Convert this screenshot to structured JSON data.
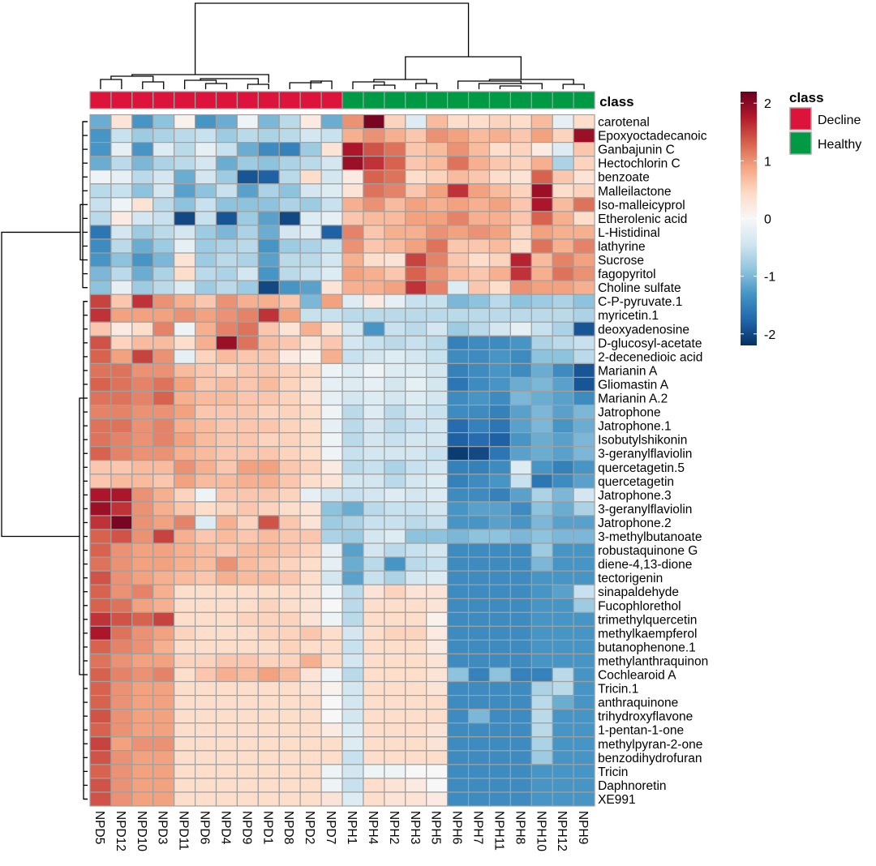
{
  "chart_data": {
    "type": "heatmap",
    "title": "",
    "columns": [
      "NPD5",
      "NPD12",
      "NPD10",
      "NPD3",
      "NPD11",
      "NPD6",
      "NPD4",
      "NPD9",
      "NPD1",
      "NPD8",
      "NPD2",
      "NPD7",
      "NPH1",
      "NPH4",
      "NPH2",
      "NPH3",
      "NPH5",
      "NPH6",
      "NPH7",
      "NPH11",
      "NPH8",
      "NPH10",
      "NPH12",
      "NPH9"
    ],
    "column_class": [
      "Decline",
      "Decline",
      "Decline",
      "Decline",
      "Decline",
      "Decline",
      "Decline",
      "Decline",
      "Decline",
      "Decline",
      "Decline",
      "Decline",
      "Healthy",
      "Healthy",
      "Healthy",
      "Healthy",
      "Healthy",
      "Healthy",
      "Healthy",
      "Healthy",
      "Healthy",
      "Healthy",
      "Healthy",
      "Healthy"
    ],
    "class_label": "class",
    "rows": [
      "carotenal",
      "Epoxyoctadecanoic",
      "Ganbajunin C",
      "Hectochlorin C",
      "benzoate",
      "Malleilactone",
      "Iso-malleicyprol",
      "Etherolenic acid",
      "L-Histidinal",
      "lathyrine",
      "Sucrose",
      "fagopyritol",
      "Choline sulfate",
      "C-P-pyruvate.1",
      "myricetin.1",
      "deoxyadenosine",
      "D-glucosyl-acetate",
      "2-decenedioic acid",
      "Marianin A",
      "Gliomastin A",
      "Marianin A.2",
      "Jatrophone",
      "Jatrophone.1",
      "Isobutylshikonin",
      "3-geranylflaviolin",
      "quercetagetin.5",
      "quercetagetin",
      "Jatrophone.3",
      "3-geranylflaviolin",
      "Jatrophone.2",
      "3-methylbutanoate",
      "robustaquinone G",
      "diene-4,13-dione",
      "tectorigenin",
      "sinapaldehyde",
      "Fucophlorethol",
      "trimethylquercetin",
      "methylkaempferol",
      "butanophenone.1",
      "methylanthraquinon",
      "Cochlearoid A",
      "Tricin.1",
      "anthraquinone",
      "trihydroxyflavone",
      "1-pentan-1-one",
      "methylpyran-2-one",
      "benzodihydrofuran",
      "Tricin",
      "Daphnoretin",
      "XE991"
    ],
    "values": [
      [
        -1.1,
        0.3,
        -1.3,
        -0.9,
        0.1,
        -1.3,
        -1.1,
        -0.1,
        -1.0,
        -0.6,
        0.2,
        -1.1,
        1.0,
        2.1,
        0.5,
        -0.3,
        0.7,
        0.4,
        0.4,
        0.5,
        0.4,
        0.7,
        -0.2,
        0.4
      ],
      [
        -1.3,
        -0.5,
        -0.8,
        -0.7,
        -0.6,
        -0.5,
        -0.8,
        -0.6,
        -0.7,
        -0.6,
        -0.4,
        -0.5,
        0.8,
        1.0,
        0.8,
        0.6,
        1.0,
        0.9,
        0.7,
        0.8,
        0.6,
        0.9,
        0.5,
        1.9
      ],
      [
        -1.3,
        -0.2,
        -1.3,
        -0.3,
        -0.6,
        -0.2,
        -0.5,
        -1.1,
        -1.4,
        -1.5,
        -0.8,
        0.3,
        1.8,
        1.4,
        1.2,
        0.6,
        0.7,
        1.0,
        0.7,
        0.4,
        0.5,
        0.2,
        -0.3,
        0.6
      ],
      [
        -1.1,
        -0.6,
        -1.0,
        -0.7,
        -0.6,
        -0.4,
        -1.1,
        -0.8,
        -0.9,
        -0.7,
        -0.6,
        -0.4,
        1.9,
        1.6,
        1.3,
        0.6,
        0.7,
        1.2,
        0.8,
        0.6,
        0.5,
        0.8,
        -0.7,
        0.5
      ],
      [
        -0.1,
        -0.2,
        -0.6,
        -0.4,
        -1.1,
        -0.4,
        -0.8,
        -1.9,
        -1.8,
        -0.6,
        0.4,
        -0.4,
        0.2,
        1.3,
        1.2,
        0.4,
        0.5,
        0.7,
        0.6,
        0.4,
        0.3,
        1.3,
        0.6,
        0.3
      ],
      [
        -0.6,
        -0.5,
        -0.9,
        -0.4,
        -1.2,
        -0.9,
        -0.5,
        -1.2,
        -0.7,
        -0.9,
        -0.4,
        -0.3,
        0.3,
        1.2,
        1.1,
        0.6,
        0.9,
        1.6,
        0.9,
        0.7,
        0.5,
        1.9,
        0.4,
        0.5
      ],
      [
        -0.5,
        -0.1,
        0.3,
        -0.6,
        -0.9,
        -0.5,
        -0.9,
        -0.9,
        -0.9,
        -0.7,
        -0.8,
        -0.5,
        0.8,
        1.0,
        0.7,
        0.9,
        0.8,
        0.9,
        0.8,
        0.9,
        0.6,
        1.8,
        0.7,
        1.2
      ],
      [
        -0.6,
        0.2,
        -0.4,
        -0.5,
        -2.0,
        -0.5,
        -1.9,
        -0.8,
        -1.2,
        -2.0,
        -0.3,
        -0.2,
        0.6,
        0.7,
        0.7,
        0.9,
        0.9,
        1.1,
        0.8,
        0.8,
        0.6,
        1.3,
        0.8,
        0.4
      ],
      [
        -1.6,
        -0.4,
        -0.8,
        -0.6,
        -0.4,
        -0.8,
        -1.0,
        -0.7,
        -1.1,
        -0.4,
        -0.3,
        -1.8,
        1.1,
        0.6,
        0.8,
        0.8,
        1.0,
        0.9,
        1.0,
        0.9,
        0.5,
        0.9,
        0.8,
        0.8
      ],
      [
        -1.4,
        -0.6,
        -1.1,
        -0.8,
        -0.2,
        -0.8,
        -0.7,
        -0.6,
        -1.3,
        -0.8,
        -0.7,
        -0.5,
        1.0,
        0.6,
        0.7,
        0.9,
        1.2,
        0.6,
        0.6,
        0.7,
        0.4,
        1.2,
        0.8,
        1.1
      ],
      [
        -1.3,
        -0.9,
        -1.3,
        -1.0,
        0.3,
        -0.8,
        -0.6,
        -0.7,
        -1.2,
        -0.6,
        -0.6,
        -0.4,
        0.8,
        0.4,
        0.3,
        1.5,
        1.1,
        0.6,
        0.4,
        0.5,
        1.7,
        0.7,
        1.1,
        0.9
      ],
      [
        -1.0,
        -0.6,
        -1.1,
        -0.7,
        0.4,
        -0.6,
        -0.7,
        -0.4,
        -1.3,
        -0.6,
        -0.5,
        -0.3,
        0.9,
        0.8,
        0.6,
        1.3,
        1.0,
        0.7,
        0.6,
        0.8,
        1.6,
        0.8,
        1.2,
        1.0
      ],
      [
        -0.9,
        -0.2,
        -0.8,
        -0.6,
        -0.3,
        -0.8,
        -0.6,
        -0.8,
        -2.0,
        -1.3,
        -1.2,
        0.3,
        0.8,
        0.8,
        0.9,
        1.6,
        1.1,
        -0.3,
        0.6,
        0.4,
        1.0,
        0.9,
        0.9,
        0.8
      ],
      [
        1.5,
        0.6,
        1.6,
        1.0,
        0.8,
        0.6,
        1.0,
        0.8,
        0.8,
        0.6,
        -1.0,
        0.9,
        -0.3,
        0.2,
        -0.2,
        -0.5,
        -0.5,
        -1.0,
        -0.9,
        -0.6,
        -0.9,
        -0.8,
        -0.7,
        -0.9
      ],
      [
        1.6,
        0.9,
        0.9,
        0.9,
        1.0,
        0.9,
        1.0,
        1.1,
        1.6,
        0.9,
        -0.5,
        -0.5,
        -0.6,
        -0.6,
        -0.6,
        -0.6,
        -0.6,
        -0.6,
        -0.6,
        -0.6,
        -0.6,
        -0.6,
        -0.6,
        -0.7
      ],
      [
        0.6,
        0.2,
        0.4,
        1.1,
        -0.1,
        0.8,
        1.1,
        1.2,
        0.6,
        0.3,
        0.8,
        0.3,
        -0.4,
        -1.3,
        -0.5,
        -0.6,
        -0.4,
        -0.8,
        -0.6,
        -0.4,
        -0.2,
        -0.5,
        -0.7,
        -1.9
      ],
      [
        1.4,
        0.5,
        0.7,
        0.7,
        0.4,
        0.8,
        1.9,
        1.2,
        0.7,
        0.6,
        0.3,
        0.6,
        -0.4,
        -0.5,
        -0.6,
        -0.5,
        -0.6,
        -1.5,
        -1.4,
        -1.4,
        -1.3,
        -0.7,
        -0.6,
        -0.5
      ],
      [
        1.3,
        0.9,
        1.5,
        1.0,
        -0.2,
        0.5,
        0.7,
        0.6,
        0.6,
        0.2,
        0.1,
        0.8,
        -0.5,
        -0.4,
        -0.3,
        -0.4,
        -0.5,
        -1.4,
        -1.4,
        -1.3,
        -1.4,
        -0.9,
        -0.9,
        -0.6
      ],
      [
        1.2,
        1.2,
        1.0,
        1.0,
        0.7,
        0.6,
        0.5,
        0.6,
        0.6,
        0.5,
        0.4,
        -0.1,
        -0.3,
        -0.1,
        -0.3,
        -0.3,
        -0.4,
        -1.5,
        -1.4,
        -1.3,
        -1.4,
        -1.1,
        -1.4,
        -1.9
      ],
      [
        1.3,
        1.2,
        1.1,
        1.2,
        0.9,
        0.6,
        0.7,
        0.6,
        0.7,
        0.5,
        0.3,
        -0.2,
        -0.3,
        -0.2,
        -0.4,
        -0.2,
        -0.4,
        -1.6,
        -1.4,
        -1.3,
        -1.1,
        -1.0,
        -1.2,
        -1.9
      ],
      [
        1.2,
        1.2,
        1.1,
        1.3,
        0.8,
        0.7,
        0.7,
        0.6,
        0.6,
        0.5,
        0.3,
        -0.2,
        -0.4,
        -0.3,
        -0.4,
        -0.3,
        -0.4,
        -1.4,
        -1.3,
        -1.4,
        -1.0,
        -1.1,
        -1.2,
        -1.4
      ],
      [
        1.1,
        1.1,
        1.0,
        1.0,
        0.9,
        0.6,
        0.6,
        0.6,
        0.5,
        0.5,
        0.4,
        -0.1,
        -0.6,
        -0.3,
        -0.6,
        -0.4,
        -0.5,
        -1.4,
        -1.4,
        -1.5,
        -1.2,
        -1.0,
        -1.2,
        -1.0
      ],
      [
        1.2,
        1.2,
        1.0,
        1.1,
        0.8,
        0.7,
        0.6,
        0.6,
        0.6,
        0.5,
        0.4,
        -0.2,
        -0.6,
        -0.4,
        -0.6,
        -0.5,
        -0.4,
        -1.7,
        -1.5,
        -1.6,
        -1.2,
        -1.0,
        -1.3,
        -1.1
      ],
      [
        1.2,
        1.1,
        1.0,
        1.1,
        0.9,
        0.7,
        0.6,
        0.6,
        0.5,
        0.5,
        0.4,
        -0.1,
        -0.6,
        -0.4,
        -0.5,
        -0.4,
        -0.4,
        -1.8,
        -1.7,
        -1.8,
        -1.3,
        -1.1,
        -1.2,
        -1.0
      ],
      [
        1.3,
        1.1,
        1.0,
        1.0,
        0.8,
        0.7,
        0.6,
        0.6,
        0.6,
        0.5,
        0.4,
        -0.1,
        -0.5,
        -0.4,
        -0.4,
        -0.4,
        -0.5,
        -2.1,
        -2.0,
        -1.6,
        -1.2,
        -1.1,
        -1.2,
        -1.0
      ],
      [
        0.6,
        0.6,
        0.7,
        0.7,
        1.0,
        0.8,
        0.6,
        0.9,
        0.9,
        0.6,
        0.5,
        0.2,
        -0.6,
        -0.5,
        -0.7,
        -0.5,
        -0.4,
        -1.5,
        -1.5,
        -1.4,
        -0.3,
        -1.3,
        -1.5,
        -1.3
      ],
      [
        0.6,
        0.7,
        0.7,
        0.6,
        0.9,
        0.7,
        0.7,
        0.8,
        0.8,
        0.6,
        0.4,
        0.3,
        -0.4,
        -0.4,
        -0.6,
        -0.4,
        -0.3,
        -1.5,
        -1.4,
        -1.3,
        -0.5,
        -1.6,
        -1.4,
        -1.2
      ],
      [
        1.8,
        1.8,
        1.0,
        0.8,
        0.5,
        -0.1,
        0.6,
        0.6,
        0.6,
        0.5,
        -0.2,
        -0.4,
        -0.5,
        -0.4,
        -0.3,
        -0.4,
        -0.3,
        -1.4,
        -1.4,
        -1.5,
        -1.2,
        -0.7,
        -1.0,
        -0.4
      ],
      [
        1.9,
        1.6,
        1.0,
        0.8,
        0.6,
        0.4,
        0.5,
        0.6,
        0.5,
        0.4,
        0.3,
        -0.9,
        -1.1,
        -0.6,
        -0.5,
        -0.5,
        -0.4,
        -1.3,
        -1.2,
        -1.2,
        -1.4,
        -0.9,
        -1.1,
        -0.7
      ],
      [
        1.6,
        2.1,
        1.0,
        0.9,
        1.1,
        -0.3,
        0.8,
        0.5,
        1.4,
        0.6,
        0.3,
        -0.8,
        -0.7,
        -0.5,
        -0.5,
        -0.6,
        -0.5,
        -1.3,
        -1.3,
        -1.2,
        -1.3,
        -1.0,
        -1.2,
        -1.2
      ],
      [
        1.3,
        1.4,
        1.0,
        1.5,
        0.8,
        0.6,
        0.7,
        0.6,
        0.7,
        0.6,
        0.6,
        -0.7,
        -0.8,
        -0.4,
        -0.3,
        -0.9,
        -0.9,
        -1.0,
        -0.9,
        -0.9,
        -1.0,
        -0.9,
        -1.0,
        -1.0
      ],
      [
        1.3,
        1.0,
        0.9,
        0.9,
        0.8,
        0.7,
        0.6,
        0.7,
        0.7,
        0.6,
        0.5,
        -0.2,
        -1.2,
        -0.4,
        -0.6,
        -0.5,
        -0.4,
        -1.4,
        -1.4,
        -1.4,
        -1.4,
        -0.8,
        -1.3,
        -1.3
      ],
      [
        1.2,
        1.0,
        0.9,
        0.9,
        0.8,
        0.7,
        1.0,
        0.7,
        0.6,
        0.5,
        0.4,
        -0.2,
        -1.1,
        -0.6,
        -1.3,
        -0.6,
        -0.5,
        -1.4,
        -1.4,
        -1.4,
        -1.4,
        -1.0,
        -1.3,
        -1.3
      ],
      [
        1.4,
        1.0,
        0.9,
        0.8,
        0.7,
        0.6,
        0.8,
        0.7,
        0.7,
        0.6,
        0.4,
        -0.4,
        -1.2,
        -0.5,
        -0.7,
        -0.4,
        -0.3,
        -1.4,
        -1.4,
        -1.4,
        -1.4,
        -1.3,
        -1.3,
        -1.3
      ],
      [
        1.3,
        1.0,
        1.1,
        0.8,
        0.4,
        0.4,
        0.4,
        0.4,
        0.4,
        0.4,
        0.3,
        -0.1,
        -0.6,
        0.3,
        0.5,
        0.3,
        0.3,
        -1.4,
        -1.4,
        -1.4,
        -1.4,
        -1.3,
        -1.2,
        -0.5
      ],
      [
        1.3,
        1.2,
        0.9,
        0.8,
        0.4,
        0.4,
        0.4,
        0.4,
        0.5,
        0.4,
        0.3,
        0.0,
        -0.6,
        0.4,
        0.4,
        0.4,
        0.3,
        -1.4,
        -1.4,
        -1.4,
        -1.4,
        -1.3,
        -1.3,
        -0.8
      ],
      [
        1.6,
        1.4,
        1.3,
        1.5,
        0.4,
        0.4,
        0.4,
        0.5,
        0.5,
        0.5,
        0.3,
        -0.1,
        -0.6,
        0.4,
        0.4,
        0.4,
        0.1,
        -1.4,
        -1.4,
        -1.4,
        -1.4,
        -1.3,
        -1.3,
        -1.3
      ],
      [
        1.8,
        1.2,
        1.0,
        0.9,
        0.5,
        0.4,
        0.4,
        0.4,
        0.5,
        0.5,
        0.6,
        0.4,
        -0.4,
        0.4,
        0.5,
        0.5,
        0.2,
        -1.4,
        -1.4,
        -1.4,
        -1.4,
        -1.3,
        -1.3,
        -1.3
      ],
      [
        1.3,
        1.1,
        1.0,
        0.8,
        0.4,
        0.4,
        0.4,
        0.4,
        0.4,
        0.5,
        0.4,
        0.4,
        -0.5,
        0.4,
        0.4,
        0.4,
        0.2,
        -1.4,
        -1.4,
        -1.4,
        -1.4,
        -1.3,
        -1.3,
        -1.3
      ],
      [
        1.2,
        1.0,
        0.9,
        0.9,
        0.5,
        0.5,
        0.6,
        0.6,
        0.5,
        0.5,
        0.8,
        0.4,
        -0.4,
        0.4,
        0.4,
        0.4,
        0.3,
        -1.4,
        -1.4,
        -1.4,
        -1.4,
        -1.3,
        -1.3,
        -1.3
      ],
      [
        1.3,
        1.1,
        1.0,
        1.1,
        0.4,
        0.6,
        0.8,
        0.7,
        0.9,
        0.7,
        0.3,
        -0.1,
        -0.6,
        0.4,
        0.4,
        0.4,
        0.3,
        -0.9,
        -1.5,
        -0.9,
        -1.5,
        -1.5,
        -0.6,
        -1.3
      ],
      [
        1.3,
        1.0,
        0.9,
        0.9,
        0.4,
        0.4,
        0.4,
        0.4,
        0.4,
        0.4,
        0.3,
        0.1,
        -0.4,
        0.4,
        0.4,
        0.4,
        0.3,
        -1.4,
        -1.4,
        -1.4,
        -1.4,
        -0.7,
        -0.6,
        -1.3
      ],
      [
        1.3,
        1.0,
        0.9,
        0.9,
        0.4,
        0.4,
        0.4,
        0.4,
        0.4,
        0.4,
        0.4,
        0.0,
        -0.4,
        0.4,
        0.4,
        0.4,
        0.4,
        -1.4,
        -1.4,
        -1.4,
        -1.4,
        -0.6,
        -1.1,
        -1.3
      ],
      [
        1.4,
        1.0,
        0.9,
        0.9,
        0.4,
        0.4,
        0.4,
        0.4,
        0.4,
        0.4,
        0.4,
        0.0,
        -0.4,
        0.4,
        0.4,
        0.4,
        0.4,
        -1.4,
        -1.0,
        -1.4,
        -1.4,
        -0.6,
        -1.3,
        -1.3
      ],
      [
        1.3,
        1.0,
        0.9,
        0.9,
        0.4,
        0.4,
        0.4,
        0.4,
        0.4,
        0.4,
        0.4,
        0.2,
        -0.3,
        0.4,
        0.4,
        0.4,
        0.3,
        -1.4,
        -1.4,
        -1.4,
        -1.4,
        -0.6,
        -1.3,
        -1.3
      ],
      [
        1.5,
        0.9,
        1.0,
        1.0,
        0.4,
        0.4,
        0.4,
        0.4,
        0.4,
        0.4,
        0.4,
        0.4,
        -0.3,
        0.4,
        0.4,
        0.4,
        0.3,
        -1.4,
        -1.4,
        -1.4,
        -1.4,
        -0.7,
        -1.3,
        -1.3
      ],
      [
        1.4,
        1.0,
        0.9,
        0.9,
        0.4,
        0.4,
        0.4,
        0.4,
        0.4,
        0.4,
        0.4,
        0.4,
        -0.5,
        0.4,
        0.4,
        0.4,
        0.4,
        -1.4,
        -1.4,
        -1.4,
        -1.4,
        -0.8,
        -1.3,
        -1.3
      ],
      [
        1.3,
        1.0,
        0.9,
        0.9,
        0.4,
        0.4,
        0.4,
        0.4,
        0.4,
        0.4,
        0.4,
        -0.1,
        -0.4,
        -0.1,
        -0.1,
        0.0,
        0.0,
        -1.4,
        -1.4,
        -1.4,
        -1.4,
        -1.3,
        -1.3,
        -1.3
      ],
      [
        1.4,
        1.0,
        0.9,
        0.9,
        0.4,
        0.4,
        0.4,
        0.4,
        0.4,
        0.4,
        0.4,
        -0.1,
        -0.5,
        0.4,
        0.3,
        0.2,
        0.0,
        -1.4,
        -1.4,
        -1.4,
        -1.4,
        -1.3,
        -1.3,
        -1.3
      ],
      [
        1.4,
        1.0,
        0.9,
        0.9,
        0.4,
        0.4,
        0.4,
        0.4,
        0.4,
        0.4,
        0.4,
        0.3,
        -0.3,
        0.4,
        0.3,
        0.3,
        0.2,
        -1.4,
        -1.4,
        -1.4,
        -1.4,
        -1.3,
        -1.3,
        -1.3
      ]
    ],
    "color_range": [
      -2.2,
      2.2
    ],
    "colorbar_ticks": [
      2,
      1,
      0,
      -1,
      -2
    ],
    "colorbar_colors": [
      "#67001f",
      "#b2182b",
      "#d6604d",
      "#f4a582",
      "#fddbc7",
      "#f7f7f7",
      "#d1e5f0",
      "#92c5de",
      "#4393c3",
      "#2166ac",
      "#053061"
    ],
    "legend": {
      "title": "class",
      "entries": [
        {
          "label": "Decline",
          "color": "#dc143c"
        },
        {
          "label": "Healthy",
          "color": "#009a44"
        }
      ]
    },
    "cell_border_color": "#a0a0a0"
  }
}
